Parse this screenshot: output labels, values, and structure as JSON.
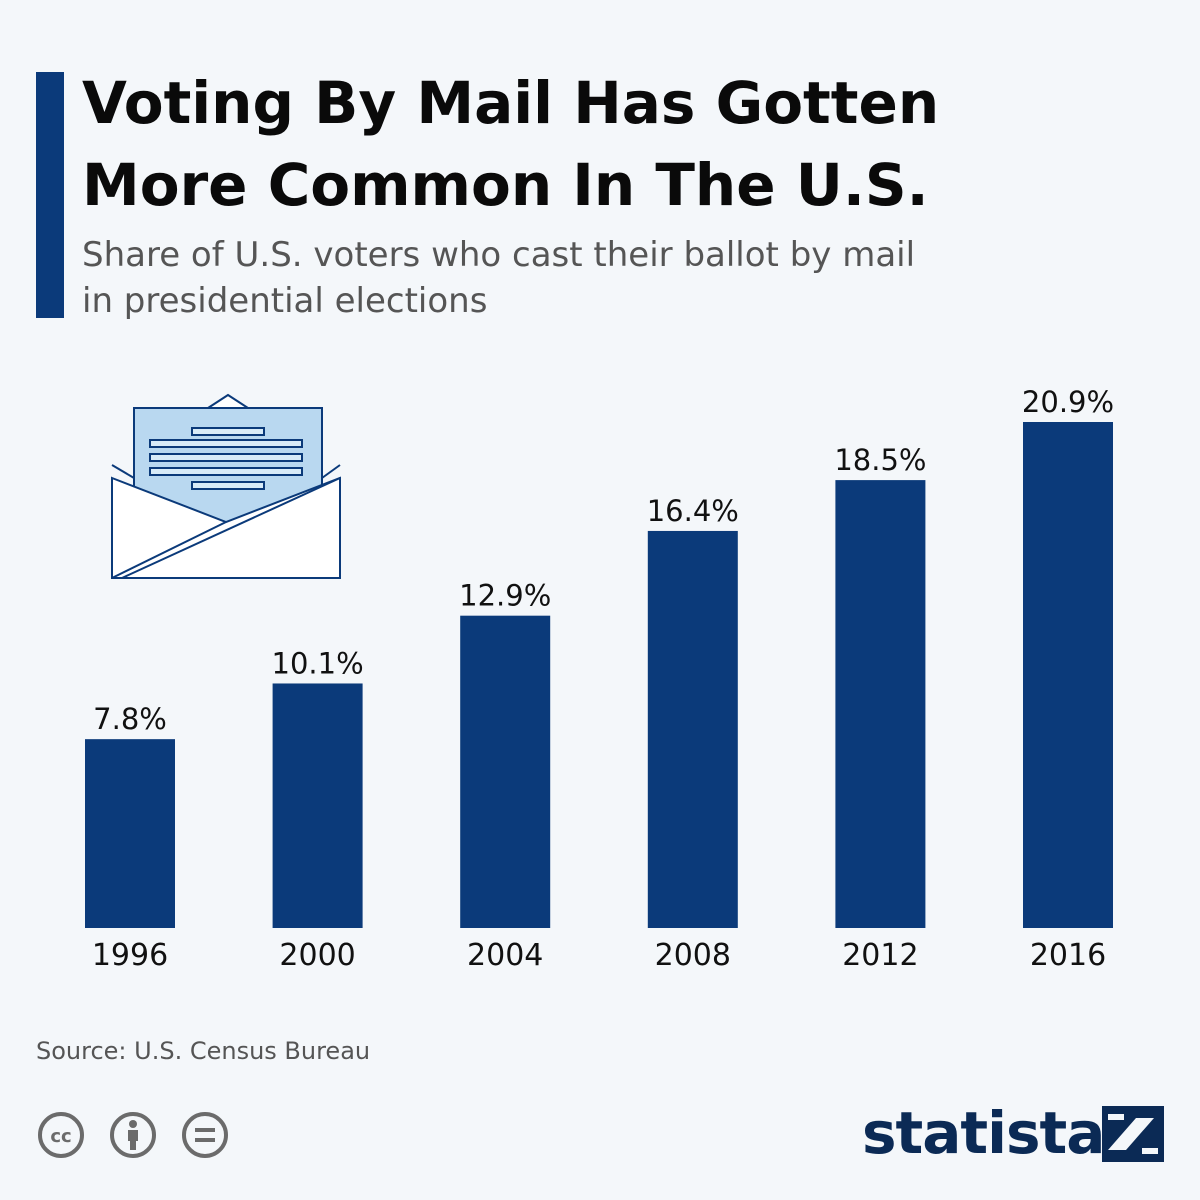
{
  "header": {
    "title_line1": "Voting By Mail Has Gotten",
    "title_line2": "More Common In The U.S.",
    "subtitle_line1": "Share of U.S. voters who cast their ballot by mail",
    "subtitle_line2": "in presidential elections"
  },
  "chart_data": {
    "type": "bar",
    "categories": [
      "1996",
      "2000",
      "2004",
      "2008",
      "2012",
      "2016"
    ],
    "values": [
      7.8,
      10.1,
      12.9,
      16.4,
      18.5,
      20.9
    ],
    "value_labels": [
      "7.8%",
      "10.1%",
      "12.9%",
      "16.4%",
      "18.5%",
      "20.9%"
    ],
    "title": "Voting By Mail Has Gotten More Common In The U.S.",
    "subtitle": "Share of U.S. voters who cast their ballot by mail in presidential elections",
    "ylim": [
      0,
      20.9
    ],
    "grid": false,
    "bar_color": "#0b3a7a"
  },
  "illustration": {
    "icon": "envelope-letter-icon"
  },
  "footer": {
    "source": "Source: U.S. Census Bureau",
    "license_icons": [
      "cc-icon",
      "attribution-icon",
      "no-derivatives-icon"
    ],
    "brand": "statista"
  },
  "colors": {
    "background": "#f4f7fa",
    "accent": "#0b3a7a",
    "envelope_fill": "#b9d8f0"
  }
}
